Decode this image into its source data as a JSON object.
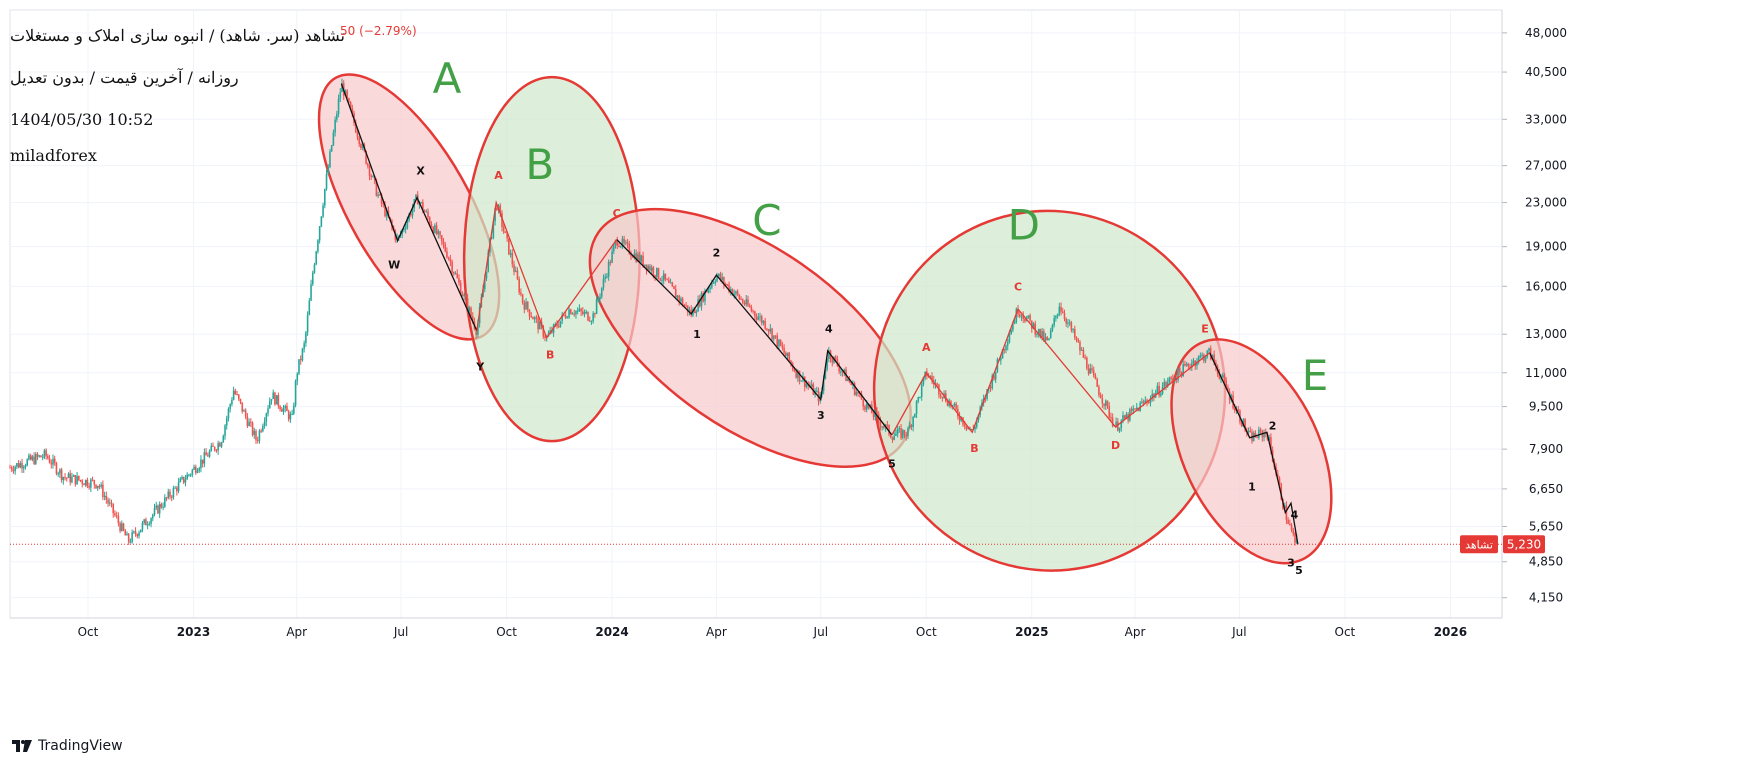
{
  "header": {
    "title": "تشاهد (سر. شاهد) / انبوه سازی املاک و مستغلات",
    "change": "50 (−2.79%)",
    "subtitle": "روزانه / آخرین قیمت / بدون تعدیل",
    "datetime": "1404/05/30 10:52",
    "author": "miladforex"
  },
  "branding": {
    "name": "TradingView"
  },
  "colors": {
    "up": "#26a69a",
    "down": "#ef5350",
    "ellipse_red_fill": "#f8c9cc",
    "ellipse_green_fill": "#cfe8cb",
    "ellipse_stroke": "#e53935",
    "big_label": "#43a047",
    "wave_black": "#111111",
    "wave_red": "#e53935",
    "price_tag": "#e53935"
  },
  "chart_data": {
    "type": "candlestick",
    "scale": "log",
    "y_axis_ticks": [
      "48,000",
      "40,500",
      "33,000",
      "27,000",
      "23,000",
      "19,000",
      "16,000",
      "13,000",
      "11,000",
      "9,500",
      "7,900",
      "6,650",
      "5,650",
      "4,850",
      "4,150"
    ],
    "y_axis_tick_values": [
      48000,
      40500,
      33000,
      27000,
      23000,
      19000,
      16000,
      13000,
      11000,
      9500,
      7900,
      6650,
      5650,
      4850,
      4150
    ],
    "x_axis_ticks": [
      {
        "label": "Oct",
        "date": "2022-10-01",
        "bold": false
      },
      {
        "label": "2023",
        "date": "2023-01-01",
        "bold": true
      },
      {
        "label": "Apr",
        "date": "2023-04-01",
        "bold": false
      },
      {
        "label": "Jul",
        "date": "2023-07-01",
        "bold": false
      },
      {
        "label": "Oct",
        "date": "2023-10-01",
        "bold": false
      },
      {
        "label": "2024",
        "date": "2024-01-01",
        "bold": true
      },
      {
        "label": "Apr",
        "date": "2024-04-01",
        "bold": false
      },
      {
        "label": "Jul",
        "date": "2024-07-01",
        "bold": false
      },
      {
        "label": "Oct",
        "date": "2024-10-01",
        "bold": false
      },
      {
        "label": "2025",
        "date": "2025-01-01",
        "bold": true
      },
      {
        "label": "Apr",
        "date": "2025-04-01",
        "bold": false
      },
      {
        "label": "Jul",
        "date": "2025-07-01",
        "bold": false
      },
      {
        "label": "Oct",
        "date": "2025-10-01",
        "bold": false
      },
      {
        "label": "2026",
        "date": "2026-01-01",
        "bold": true
      }
    ],
    "x_range": [
      "2022-07-25",
      "2026-02-15"
    ],
    "y_range": [
      3800,
      53000
    ],
    "last_price": {
      "value": 5230,
      "label": "5,230",
      "symbol": "تشاهد"
    },
    "price_path": [
      [
        "2022-07-25",
        7300
      ],
      [
        "2022-08-25",
        7700
      ],
      [
        "2022-09-10",
        7000
      ],
      [
        "2022-10-10",
        6800
      ],
      [
        "2022-11-05",
        5300
      ],
      [
        "2022-11-25",
        5900
      ],
      [
        "2022-12-20",
        6800
      ],
      [
        "2023-01-25",
        8200
      ],
      [
        "2023-02-05",
        10200
      ],
      [
        "2023-02-25",
        8200
      ],
      [
        "2023-03-10",
        10000
      ],
      [
        "2023-03-28",
        9000
      ],
      [
        "2023-04-01",
        11000
      ],
      [
        "2023-04-08",
        12500
      ],
      [
        "2023-04-15",
        17000
      ],
      [
        "2023-04-25",
        24000
      ],
      [
        "2023-05-05",
        33000
      ],
      [
        "2023-05-10",
        38500
      ],
      [
        "2023-06-10",
        24000
      ],
      [
        "2023-06-28",
        19500
      ],
      [
        "2023-07-15",
        23500
      ],
      [
        "2023-08-10",
        18500
      ],
      [
        "2023-09-05",
        13200
      ],
      [
        "2023-09-22",
        23000
      ],
      [
        "2023-10-15",
        15000
      ],
      [
        "2023-11-05",
        12800
      ],
      [
        "2023-11-25",
        14500
      ],
      [
        "2023-12-15",
        14000
      ],
      [
        "2024-01-05",
        19600
      ],
      [
        "2024-02-15",
        16500
      ],
      [
        "2024-03-10",
        14200
      ],
      [
        "2024-04-01",
        16800
      ],
      [
        "2024-05-15",
        13500
      ],
      [
        "2024-06-10",
        11000
      ],
      [
        "2024-07-01",
        9800
      ],
      [
        "2024-07-07",
        12100
      ],
      [
        "2024-08-10",
        9500
      ],
      [
        "2024-09-01",
        8400
      ],
      [
        "2024-09-15",
        8500
      ],
      [
        "2024-10-01",
        11000
      ],
      [
        "2024-11-10",
        8500
      ],
      [
        "2024-12-20",
        14500
      ],
      [
        "2025-01-15",
        12500
      ],
      [
        "2025-01-25",
        14800
      ],
      [
        "2025-03-15",
        8700
      ],
      [
        "2025-05-20",
        11500
      ],
      [
        "2025-06-05",
        12000
      ],
      [
        "2025-07-10",
        8300
      ],
      [
        "2025-07-25",
        8500
      ],
      [
        "2025-08-10",
        6000
      ],
      [
        "2025-08-18",
        5300
      ],
      [
        "2025-08-21",
        5230
      ]
    ],
    "wave_black": [
      {
        "points": [
          [
            "2023-05-10",
            38500
          ],
          [
            "2023-06-28",
            19500
          ],
          [
            "2023-07-15",
            23500
          ],
          [
            "2023-09-05",
            13200
          ]
        ]
      },
      {
        "points": [
          [
            "2024-01-05",
            19600
          ],
          [
            "2024-03-10",
            14200
          ],
          [
            "2024-04-01",
            16800
          ],
          [
            "2024-07-01",
            9800
          ],
          [
            "2024-07-07",
            12100
          ],
          [
            "2024-09-01",
            8400
          ]
        ]
      },
      {
        "points": [
          [
            "2025-06-05",
            12000
          ],
          [
            "2025-07-10",
            8300
          ],
          [
            "2025-07-25",
            8500
          ],
          [
            "2025-08-10",
            6000
          ],
          [
            "2025-08-15",
            6250
          ],
          [
            "2025-08-21",
            5230
          ]
        ]
      }
    ],
    "wave_red": [
      {
        "points": [
          [
            "2023-09-05",
            13200
          ],
          [
            "2023-09-22",
            23000
          ],
          [
            "2023-11-05",
            12800
          ],
          [
            "2024-01-05",
            19600
          ]
        ]
      },
      {
        "points": [
          [
            "2024-09-01",
            8400
          ],
          [
            "2024-10-01",
            11000
          ],
          [
            "2024-11-10",
            8500
          ],
          [
            "2024-12-20",
            14500
          ],
          [
            "2025-03-15",
            8700
          ],
          [
            "2025-06-05",
            12000
          ]
        ]
      }
    ],
    "wave_labels": [
      {
        "text": "W",
        "date": "2023-06-25",
        "price": 17300,
        "color": "black"
      },
      {
        "text": "X",
        "date": "2023-07-18",
        "price": 26000,
        "color": "black"
      },
      {
        "text": "Y",
        "date": "2023-09-08",
        "price": 11100,
        "color": "black"
      },
      {
        "text": "A",
        "date": "2023-09-24",
        "price": 25500,
        "color": "red"
      },
      {
        "text": "B",
        "date": "2023-11-08",
        "price": 11700,
        "color": "red"
      },
      {
        "text": "C",
        "date": "2024-01-05",
        "price": 21600,
        "color": "red"
      },
      {
        "text": "1",
        "date": "2024-03-15",
        "price": 12800,
        "color": "black"
      },
      {
        "text": "2",
        "date": "2024-04-01",
        "price": 18200,
        "color": "black"
      },
      {
        "text": "3",
        "date": "2024-07-01",
        "price": 9000,
        "color": "black"
      },
      {
        "text": "4",
        "date": "2024-07-08",
        "price": 13100,
        "color": "black"
      },
      {
        "text": "5",
        "date": "2024-09-01",
        "price": 7300,
        "color": "black"
      },
      {
        "text": "A",
        "date": "2024-10-01",
        "price": 12100,
        "color": "red"
      },
      {
        "text": "B",
        "date": "2024-11-12",
        "price": 7800,
        "color": "red"
      },
      {
        "text": "C",
        "date": "2024-12-20",
        "price": 15700,
        "color": "red"
      },
      {
        "text": "D",
        "date": "2025-03-15",
        "price": 7900,
        "color": "red"
      },
      {
        "text": "E",
        "date": "2025-06-01",
        "price": 13100,
        "color": "red"
      },
      {
        "text": "1",
        "date": "2025-07-12",
        "price": 6600,
        "color": "black"
      },
      {
        "text": "2",
        "date": "2025-07-30",
        "price": 8600,
        "color": "black"
      },
      {
        "text": "3",
        "date": "2025-08-15",
        "price": 4750,
        "color": "black"
      },
      {
        "text": "4",
        "date": "2025-08-18",
        "price": 5850,
        "color": "black"
      },
      {
        "text": "5",
        "date": "2025-08-22",
        "price": 4600,
        "color": "black"
      }
    ],
    "big_labels": [
      {
        "text": "A",
        "date": "2023-08-10",
        "price": 37000
      },
      {
        "text": "B",
        "date": "2023-10-30",
        "price": 25500
      },
      {
        "text": "C",
        "date": "2024-05-15",
        "price": 20000
      },
      {
        "text": "D",
        "date": "2024-12-25",
        "price": 19600
      },
      {
        "text": "E",
        "date": "2025-09-05",
        "price": 10200
      }
    ],
    "ellipses": [
      {
        "name": "A",
        "color": "red",
        "from": [
          "2023-05-05",
          39500
        ],
        "to": [
          "2023-09-10",
          12900
        ],
        "width": 60
      },
      {
        "name": "B",
        "color": "green",
        "from": [
          "2023-08-25",
          18000
        ],
        "to": [
          "2024-01-25",
          18000
        ],
        "width": 182
      },
      {
        "name": "C",
        "color": "red",
        "from": [
          "2023-12-20",
          20200
        ],
        "to": [
          "2024-09-10",
          8100
        ],
        "width": 90
      },
      {
        "name": "D",
        "color": "green",
        "from": [
          "2024-08-20",
          8700
        ],
        "to": [
          "2025-06-15",
          11900
        ],
        "width": 180
      },
      {
        "name": "E",
        "color": "red",
        "from": [
          "2025-05-28",
          12500
        ],
        "to": [
          "2025-08-25",
          4900
        ],
        "width": 68
      }
    ]
  }
}
